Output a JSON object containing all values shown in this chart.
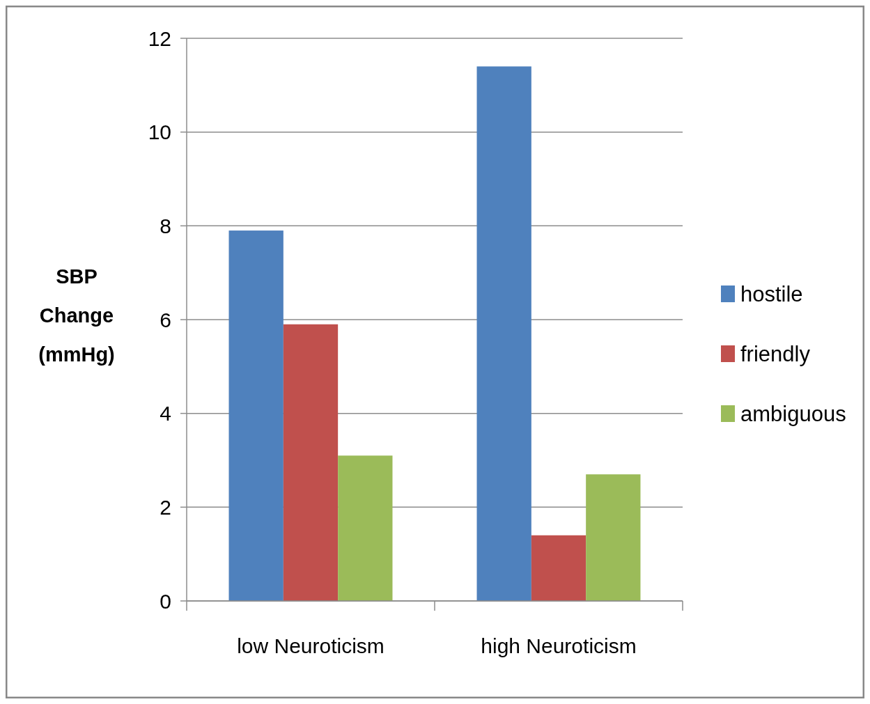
{
  "chart_data": {
    "type": "bar",
    "ylabel": "SBP Change (mmHg)",
    "categories": [
      "low Neuroticism",
      "high Neuroticism"
    ],
    "series": [
      {
        "name": "hostile",
        "color": "#4f81bd",
        "values": [
          7.9,
          11.4
        ]
      },
      {
        "name": "friendly",
        "color": "#c0504d",
        "values": [
          5.9,
          1.4
        ]
      },
      {
        "name": "ambiguous",
        "color": "#9bbb59",
        "values": [
          3.1,
          2.7
        ]
      }
    ],
    "ylim": [
      0,
      12
    ],
    "yticks": [
      0,
      2,
      4,
      6,
      8,
      10,
      12
    ],
    "grid": "y",
    "legend": "right"
  }
}
